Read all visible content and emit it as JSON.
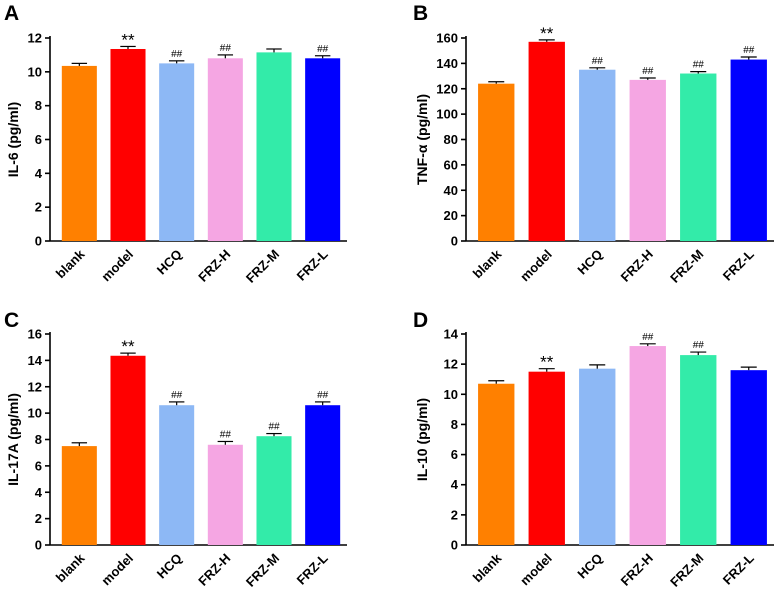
{
  "chart_data": [
    {
      "type": "bar",
      "panel": "A",
      "ylabel": "IL-6 (pg/ml)",
      "ylim": [
        0,
        12
      ],
      "yticks": [
        0,
        2,
        4,
        6,
        8,
        10,
        12
      ],
      "categories": [
        "blank",
        "model",
        "HCQ",
        "FRZ-H",
        "FRZ-M",
        "FRZ-L"
      ],
      "values": [
        10.35,
        11.35,
        10.5,
        10.8,
        11.15,
        10.8
      ],
      "errors": [
        0.15,
        0.15,
        0.15,
        0.2,
        0.2,
        0.15
      ],
      "annotations": [
        "",
        "**",
        "##",
        "##",
        "",
        "##"
      ],
      "colors": [
        "#ff8000",
        "#ff0000",
        "#8db8f5",
        "#f5a6e3",
        "#33eba9",
        "#0000ff"
      ]
    },
    {
      "type": "bar",
      "panel": "B",
      "ylabel": "TNF-α (pg/ml)",
      "ylim": [
        0,
        160
      ],
      "yticks": [
        0,
        20,
        40,
        60,
        80,
        100,
        120,
        140,
        160
      ],
      "categories": [
        "blank",
        "model",
        "HCQ",
        "FRZ-H",
        "FRZ-M",
        "FRZ-L"
      ],
      "values": [
        124,
        157,
        135,
        127,
        132,
        143
      ],
      "errors": [
        1.5,
        1.5,
        1.5,
        1.5,
        1.5,
        2
      ],
      "annotations": [
        "",
        "**",
        "##",
        "##",
        "##",
        "##"
      ],
      "colors": [
        "#ff8000",
        "#ff0000",
        "#8db8f5",
        "#f5a6e3",
        "#33eba9",
        "#0000ff"
      ]
    },
    {
      "type": "bar",
      "panel": "C",
      "ylabel": "IL-17A (pg/ml)",
      "ylim": [
        0,
        16
      ],
      "yticks": [
        0,
        2,
        4,
        6,
        8,
        10,
        12,
        14,
        16
      ],
      "categories": [
        "blank",
        "model",
        "HCQ",
        "FRZ-H",
        "FRZ-M",
        "FRZ-L"
      ],
      "values": [
        7.5,
        14.35,
        10.6,
        7.6,
        8.25,
        10.6
      ],
      "errors": [
        0.25,
        0.2,
        0.25,
        0.25,
        0.2,
        0.25
      ],
      "annotations": [
        "",
        "**",
        "##",
        "##",
        "##",
        "##"
      ],
      "colors": [
        "#ff8000",
        "#ff0000",
        "#8db8f5",
        "#f5a6e3",
        "#33eba9",
        "#0000ff"
      ]
    },
    {
      "type": "bar",
      "panel": "D",
      "ylabel": "IL-10 (pg/ml)",
      "ylim": [
        0,
        14
      ],
      "yticks": [
        0,
        2,
        4,
        6,
        8,
        10,
        12,
        14
      ],
      "categories": [
        "blank",
        "model",
        "HCQ",
        "FRZ-H",
        "FRZ-M",
        "FRZ-L"
      ],
      "values": [
        10.7,
        11.5,
        11.7,
        13.2,
        12.6,
        11.6
      ],
      "errors": [
        0.2,
        0.2,
        0.25,
        0.15,
        0.2,
        0.2
      ],
      "annotations": [
        "",
        "**",
        "",
        "##",
        "##",
        ""
      ],
      "colors": [
        "#ff8000",
        "#ff0000",
        "#8db8f5",
        "#f5a6e3",
        "#33eba9",
        "#0000ff"
      ]
    }
  ]
}
